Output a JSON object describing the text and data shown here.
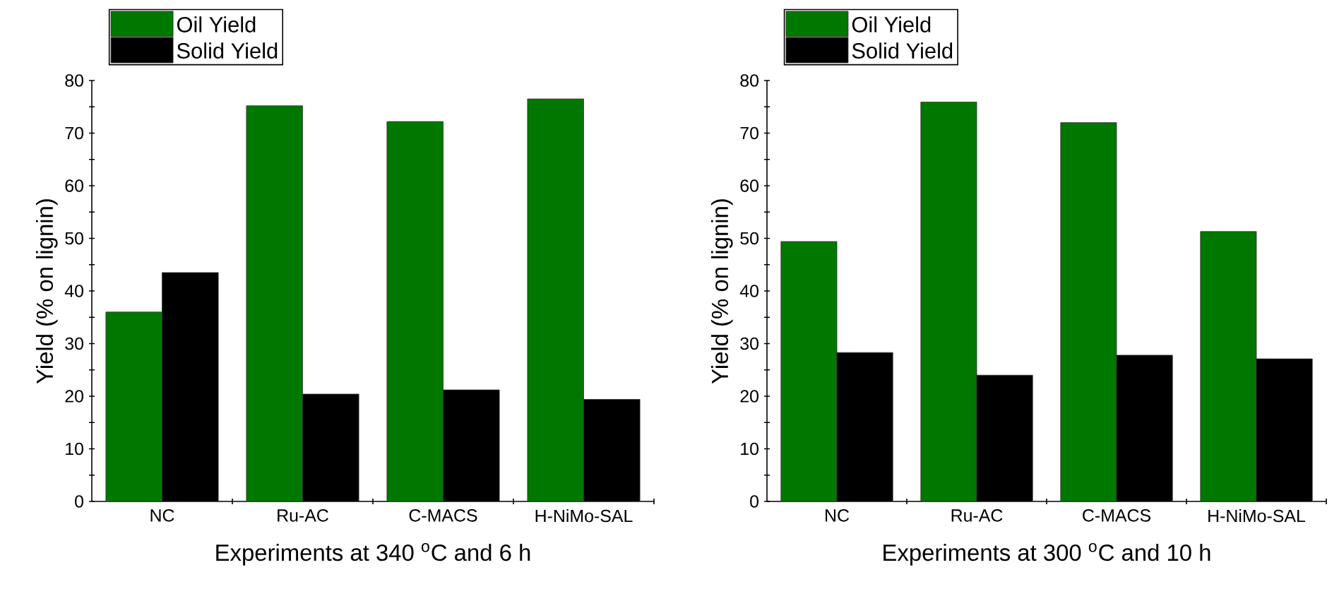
{
  "chart_data": [
    {
      "type": "bar",
      "xlabel": "Experiments at 340 $^{o}$C and 6 h",
      "ylabel": "Yield (% on lignin)",
      "categories": [
        "NC",
        "Ru-AC",
        "C-MACS",
        "H-NiMo-SAL"
      ],
      "series": [
        {
          "name": "Oil Yield",
          "color": "#007800",
          "values": [
            36.0,
            75.2,
            72.2,
            76.5
          ]
        },
        {
          "name": "Solid Yield",
          "color": "#000000",
          "values": [
            43.5,
            20.4,
            21.2,
            19.4
          ]
        }
      ],
      "ylim": [
        0,
        80
      ],
      "yticks": [
        0,
        10,
        20,
        30,
        40,
        50,
        60,
        70,
        80
      ],
      "legend": "top left",
      "grid": false
    },
    {
      "type": "bar",
      "xlabel": "Experiments at 300 $^{o}$C and 10 h",
      "ylabel": "Yield (% on lignin)",
      "categories": [
        "NC",
        "Ru-AC",
        "C-MACS",
        "H-NiMo-SAL"
      ],
      "series": [
        {
          "name": "Oil Yield",
          "color": "#007800",
          "values": [
            49.4,
            75.9,
            72.0,
            51.3
          ]
        },
        {
          "name": "Solid Yield",
          "color": "#000000",
          "values": [
            28.3,
            24.0,
            27.8,
            27.1
          ]
        }
      ],
      "ylim": [
        0,
        80
      ],
      "yticks": [
        0,
        10,
        20,
        30,
        40,
        50,
        60,
        70,
        80
      ],
      "legend": "top left",
      "grid": false
    }
  ]
}
